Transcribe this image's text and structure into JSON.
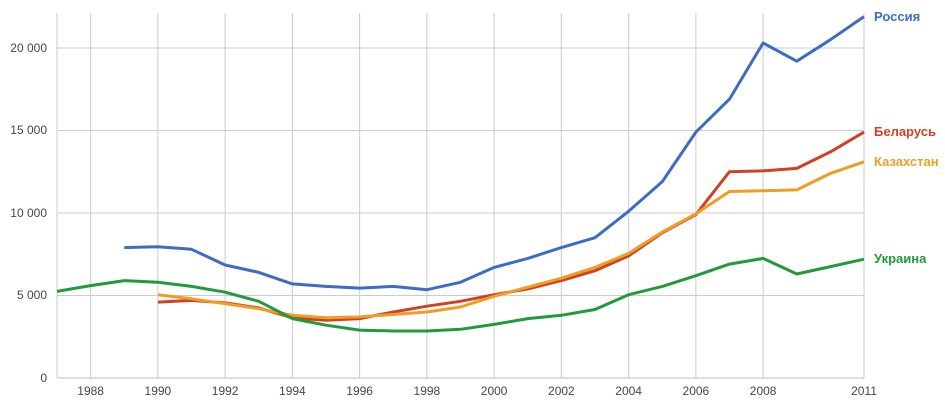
{
  "chart_data": {
    "type": "line",
    "title": "",
    "xlabel": "",
    "ylabel": "",
    "x": [
      1987,
      1988,
      1989,
      1990,
      1991,
      1992,
      1993,
      1994,
      1995,
      1996,
      1997,
      1998,
      1999,
      2000,
      2001,
      2002,
      2003,
      2004,
      2005,
      2006,
      2007,
      2008,
      2009,
      2010,
      2011
    ],
    "series": [
      {
        "name": "Россия",
        "slug": "russia",
        "color": "#3d6cc4",
        "values": [
          null,
          null,
          7900,
          7950,
          7800,
          6850,
          6400,
          5700,
          5550,
          5450,
          5550,
          5350,
          5800,
          6700,
          7250,
          7900,
          8500,
          10100,
          11900,
          14900,
          16900,
          20300,
          19200,
          20500,
          21900
        ]
      },
      {
        "name": "Беларусь",
        "slug": "belarus",
        "color": "#cf4125",
        "values": [
          null,
          null,
          null,
          4600,
          4700,
          4550,
          4250,
          3650,
          3500,
          3600,
          4000,
          4350,
          4650,
          5050,
          5400,
          5900,
          6500,
          7400,
          8800,
          9900,
          12500,
          12550,
          12700,
          13700,
          14900
        ]
      },
      {
        "name": "Казахстан",
        "slug": "kazakhstan",
        "color": "#f09d24",
        "values": [
          null,
          null,
          null,
          5050,
          4800,
          4500,
          4200,
          3800,
          3650,
          3700,
          3850,
          4000,
          4300,
          4950,
          5500,
          6050,
          6700,
          7550,
          8850,
          9950,
          11300,
          11350,
          11400,
          12400,
          13100
        ]
      },
      {
        "name": "Украина",
        "slug": "ukraine",
        "color": "#229a3c",
        "values": [
          5250,
          5600,
          5900,
          5800,
          5550,
          5200,
          4650,
          3600,
          3200,
          2900,
          2850,
          2850,
          2950,
          3250,
          3600,
          3800,
          4150,
          5050,
          5550,
          6200,
          6900,
          7250,
          6300,
          6750,
          7200
        ]
      }
    ],
    "xticks": [
      1988,
      1990,
      1992,
      1994,
      1996,
      1998,
      2000,
      2002,
      2004,
      2006,
      2008,
      2011
    ],
    "yticks": [
      0,
      5000,
      10000,
      15000,
      20000
    ],
    "ytick_labels": [
      "0",
      "5 000",
      "10 000",
      "15 000",
      "20 000"
    ],
    "xlim": [
      1987,
      2011
    ],
    "ylim": [
      0,
      22120
    ],
    "grid": true,
    "legend_position": "right-at-line-ends"
  },
  "styles": {
    "background": "#ffffff",
    "grid_color": "#cccccc",
    "baseline_color": "#bdbdbd",
    "axis_label_color": "#45454f"
  }
}
